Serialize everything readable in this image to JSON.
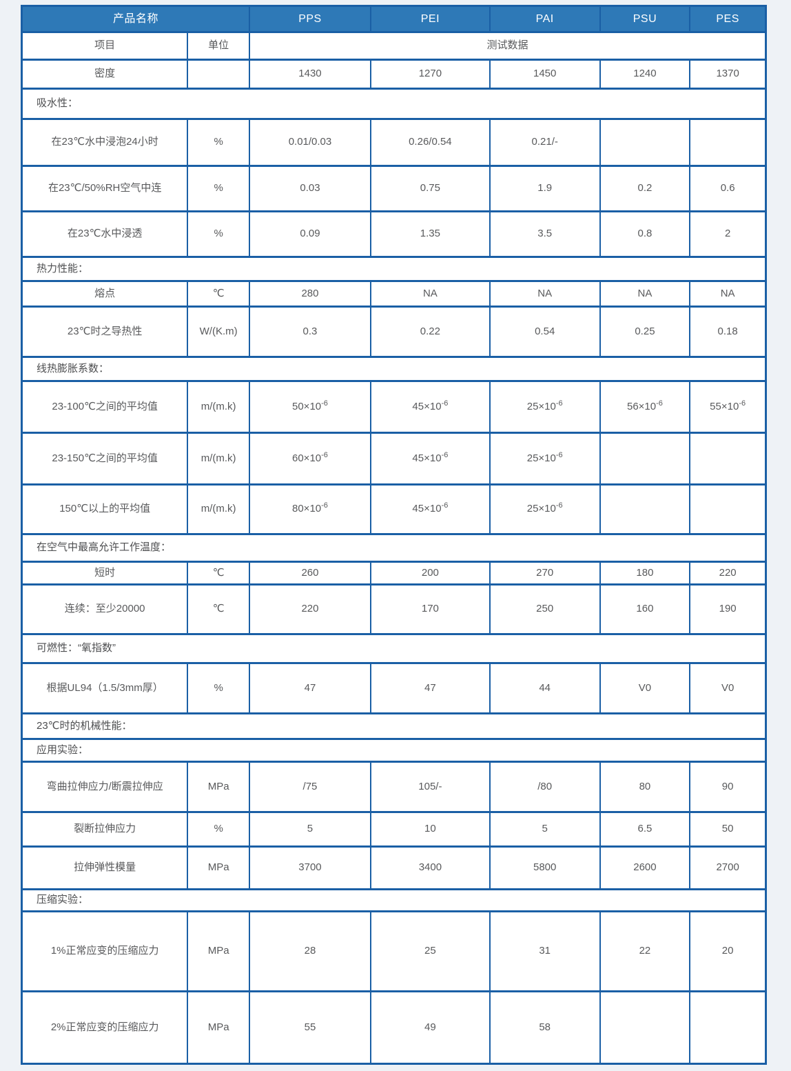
{
  "colors": {
    "header_bg": "#2e79b7",
    "border_blue": "#1a5fa5",
    "cell_text": "#58595b",
    "header_text": "#ffffff",
    "page_bg": "#eef2f6"
  },
  "table": {
    "rows": [
      {
        "type": "products",
        "label": "产品名称",
        "products": [
          "PPS",
          "PEI",
          "PAI",
          "PSU",
          "PES"
        ]
      },
      {
        "type": "subheader",
        "item": "项目",
        "unit": "单位",
        "span_label": "测试数据"
      },
      {
        "type": "data",
        "label": "密度",
        "unit": "",
        "values": [
          "1430",
          "1270",
          "1450",
          "1240",
          "1370"
        ]
      },
      {
        "type": "section",
        "label": "吸水性："
      },
      {
        "type": "data",
        "label": "在23℃水中浸泡24小时",
        "unit": "%",
        "values": [
          "0.01/0.03",
          "0.26/0.54",
          "0.21/-",
          "",
          ""
        ]
      },
      {
        "type": "data",
        "label": "在23℃/50%RH空气中连",
        "unit": "%",
        "values": [
          "0.03",
          "0.75",
          "1.9",
          "0.2",
          "0.6"
        ]
      },
      {
        "type": "data",
        "label": "在23℃水中浸透",
        "unit": "%",
        "values": [
          "0.09",
          "1.35",
          "3.5",
          "0.8",
          "2"
        ]
      },
      {
        "type": "section",
        "label": "热力性能："
      },
      {
        "type": "data",
        "label": "熔点",
        "unit": "℃",
        "values": [
          "280",
          "NA",
          "NA",
          "NA",
          "NA"
        ]
      },
      {
        "type": "data",
        "label": "23℃时之导热性",
        "unit": "W/(K.m)",
        "values": [
          "0.3",
          "0.22",
          "0.54",
          "0.25",
          "0.18"
        ]
      },
      {
        "type": "section",
        "label": "线热膨胀系数："
      },
      {
        "type": "data",
        "label": "23-100℃之间的平均值",
        "unit": "m/(m.k)",
        "values": [
          "50×10^-6",
          "45×10^-6",
          "25×10^-6",
          "56×10^-6",
          "55×10^-6"
        ]
      },
      {
        "type": "data",
        "label": "23-150℃之间的平均值",
        "unit": "m/(m.k)",
        "values": [
          "60×10^-6",
          "45×10^-6",
          "25×10^-6",
          "",
          ""
        ]
      },
      {
        "type": "data",
        "label": "150℃以上的平均值",
        "unit": "m/(m.k)",
        "values": [
          "80×10^-6",
          "45×10^-6",
          "25×10^-6",
          "",
          ""
        ]
      },
      {
        "type": "section",
        "label": "在空气中最高允许工作温度："
      },
      {
        "type": "data",
        "label": "短时",
        "unit": "℃",
        "values": [
          "260",
          "200",
          "270",
          "180",
          "220"
        ]
      },
      {
        "type": "data",
        "label": "连续：至少20000",
        "unit": "℃",
        "values": [
          "220",
          "170",
          "250",
          "160",
          "190"
        ]
      },
      {
        "type": "section",
        "label": "可燃性：“氧指数”"
      },
      {
        "type": "data",
        "label": "根据UL94（1.5/3mm厚）",
        "unit": "%",
        "values": [
          "47",
          "47",
          "44",
          "V0",
          "V0"
        ]
      },
      {
        "type": "section",
        "label": "23℃时的机械性能："
      },
      {
        "type": "section",
        "label": "应用实验："
      },
      {
        "type": "data",
        "label": "弯曲拉伸应力/断震拉伸应",
        "unit": "MPa",
        "values": [
          "/75",
          "105/-",
          "/80",
          "80",
          "90"
        ]
      },
      {
        "type": "data",
        "label": "裂断拉伸应力",
        "unit": "%",
        "values": [
          "5",
          "10",
          "5",
          "6.5",
          "50"
        ]
      },
      {
        "type": "data",
        "label": "拉伸弹性模量",
        "unit": "MPa",
        "values": [
          "3700",
          "3400",
          "5800",
          "2600",
          "2700"
        ]
      },
      {
        "type": "section",
        "label": "压缩实验："
      },
      {
        "type": "data",
        "label": "1%正常应变的压缩应力",
        "unit": "MPa",
        "values": [
          "28",
          "25",
          "31",
          "22",
          "20"
        ]
      },
      {
        "type": "data",
        "label": "2%正常应变的压缩应力",
        "unit": "MPa",
        "values": [
          "55",
          "49",
          "58",
          "",
          ""
        ]
      }
    ]
  }
}
